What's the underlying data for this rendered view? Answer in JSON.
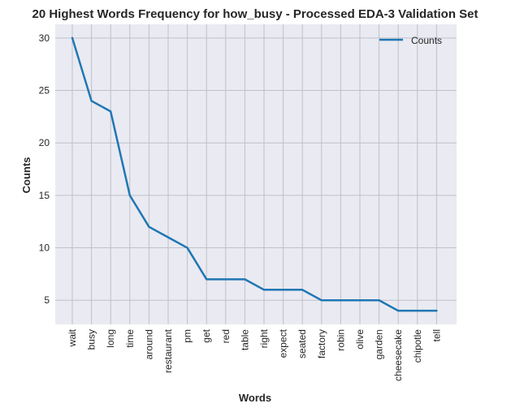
{
  "chart_data": {
    "type": "line",
    "title": "20 Highest Words Frequency for how_busy - Processed EDA-3 Validation Set",
    "xlabel": "Words",
    "ylabel": "Counts",
    "categories": [
      "wait",
      "busy",
      "long",
      "time",
      "around",
      "restaurant",
      "pm",
      "get",
      "red",
      "table",
      "right",
      "expect",
      "seated",
      "factory",
      "robin",
      "olive",
      "garden",
      "cheesecake",
      "chipotle",
      "tell"
    ],
    "series": [
      {
        "name": "Counts",
        "values": [
          30,
          24,
          23,
          15,
          12,
          11,
          10,
          7,
          7,
          7,
          6,
          6,
          6,
          5,
          5,
          5,
          5,
          4,
          4,
          4
        ]
      }
    ],
    "ylim": [
      2.7,
      31.3
    ],
    "yticks": [
      5,
      10,
      15,
      20,
      25,
      30
    ],
    "grid": true,
    "legend": "top-right",
    "colors": {
      "line": "#1f77b4",
      "plot_bg": "#eaeaf2",
      "grid": "#c0c0c8"
    }
  }
}
